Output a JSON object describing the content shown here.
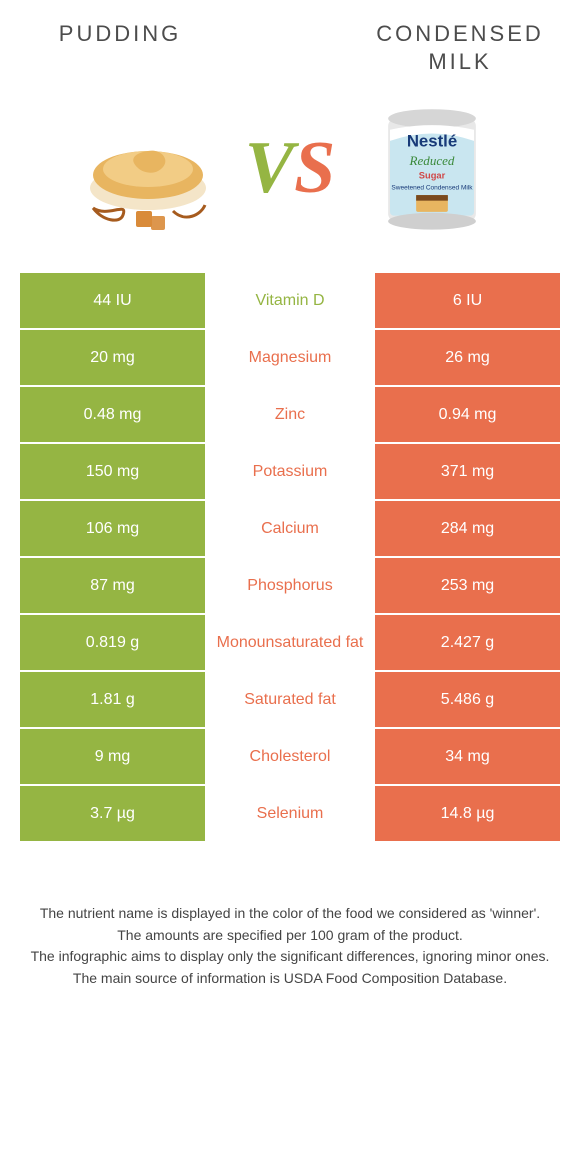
{
  "header": {
    "left_title": "PUDDING",
    "right_title_line1": "CONDENSED",
    "right_title_line2": "MILK"
  },
  "vs": {
    "v": "V",
    "s": "S"
  },
  "colors": {
    "left": "#95b543",
    "right": "#e96f4d",
    "vs_v": "#95b543",
    "vs_s": "#e96f4d",
    "header_text": "#4c4c4c",
    "cell_text": "#ffffff",
    "bg": "#ffffff"
  },
  "table": {
    "rows": [
      {
        "left": "44 IU",
        "label": "Vitamin D",
        "right": "6 IU",
        "winner": "left"
      },
      {
        "left": "20 mg",
        "label": "Magnesium",
        "right": "26 mg",
        "winner": "right"
      },
      {
        "left": "0.48 mg",
        "label": "Zinc",
        "right": "0.94 mg",
        "winner": "right"
      },
      {
        "left": "150 mg",
        "label": "Potassium",
        "right": "371 mg",
        "winner": "right"
      },
      {
        "left": "106 mg",
        "label": "Calcium",
        "right": "284 mg",
        "winner": "right"
      },
      {
        "left": "87 mg",
        "label": "Phosphorus",
        "right": "253 mg",
        "winner": "right"
      },
      {
        "left": "0.819 g",
        "label": "Monounsaturated fat",
        "right": "2.427 g",
        "winner": "right"
      },
      {
        "left": "1.81 g",
        "label": "Saturated fat",
        "right": "5.486 g",
        "winner": "right"
      },
      {
        "left": "9 mg",
        "label": "Cholesterol",
        "right": "34 mg",
        "winner": "right"
      },
      {
        "left": "3.7 µg",
        "label": "Selenium",
        "right": "14.8 µg",
        "winner": "right"
      }
    ]
  },
  "footer": {
    "line1": "The nutrient name is displayed in the color of the food we considered as 'winner'.",
    "line2": "The amounts are specified per 100 gram of the product.",
    "line3": "The infographic aims to display only the significant differences, ignoring minor ones.",
    "line4": "The main source of information is USDA Food Composition Database."
  },
  "left_image": {
    "alt": "pudding-bowl"
  },
  "right_image": {
    "alt": "nestle-condensed-milk-can",
    "brand": "Nestlé",
    "line1": "Reduced",
    "line2": "Sweetened Condensed Milk",
    "variant": "Sugar"
  }
}
